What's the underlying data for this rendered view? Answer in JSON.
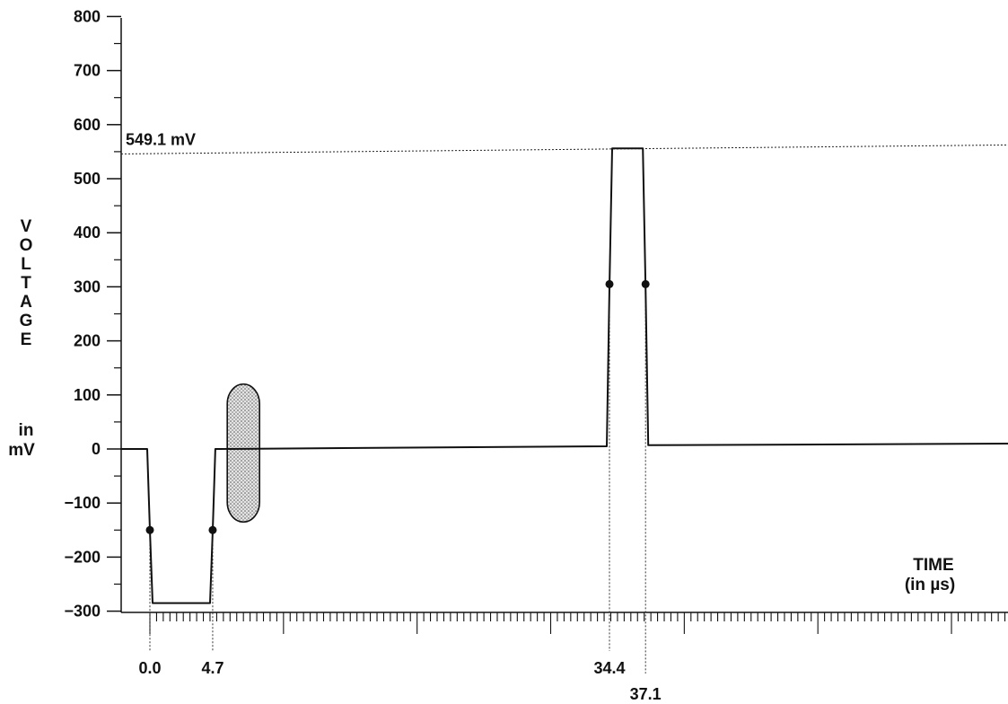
{
  "chart_data": {
    "type": "line",
    "title": "",
    "ylabel": "VOLTAGE",
    "ylabel_unit": "in mV",
    "xlabel": "TIME",
    "xlabel_unit": "(in µs)",
    "ylim": [
      -300,
      800
    ],
    "xlim": [
      -2.2,
      65
    ],
    "y_ticks": [
      800,
      700,
      600,
      500,
      400,
      300,
      200,
      100,
      0,
      -100,
      -200,
      -300
    ],
    "y_tick_labels": [
      "800",
      "700",
      "600",
      "500",
      "400",
      "300",
      "200",
      "100",
      "0",
      "−100",
      "−200",
      "−300"
    ],
    "x_tick_labels": [
      {
        "x": 0.0,
        "label": "0.0"
      },
      {
        "x": 4.7,
        "label": "4.7"
      },
      {
        "x": 34.4,
        "label": "34.4"
      },
      {
        "x": 37.1,
        "label": "37.1"
      }
    ],
    "reference_line": {
      "y": 549.1,
      "label": "549.1 mV"
    },
    "series": [
      {
        "x": [
          -2.2,
          -0.2,
          0.0,
          0.2,
          4.5,
          4.7,
          4.9,
          5.3,
          34.2,
          34.4,
          34.6,
          36.9,
          37.1,
          37.3,
          65
        ],
        "y": [
          0,
          0,
          -150,
          -285,
          -285,
          -150,
          0,
          0,
          5,
          300,
          556,
          556,
          300,
          7,
          10
        ]
      }
    ],
    "markers": [
      {
        "x": 0.0,
        "y": -150
      },
      {
        "x": 4.7,
        "y": -150
      },
      {
        "x": 34.4,
        "y": 305
      },
      {
        "x": 37.1,
        "y": 305
      }
    ],
    "highlight_region": {
      "x": 7.0,
      "y_min": -135,
      "y_max": 120,
      "pattern": "stippled"
    },
    "grid": false
  }
}
